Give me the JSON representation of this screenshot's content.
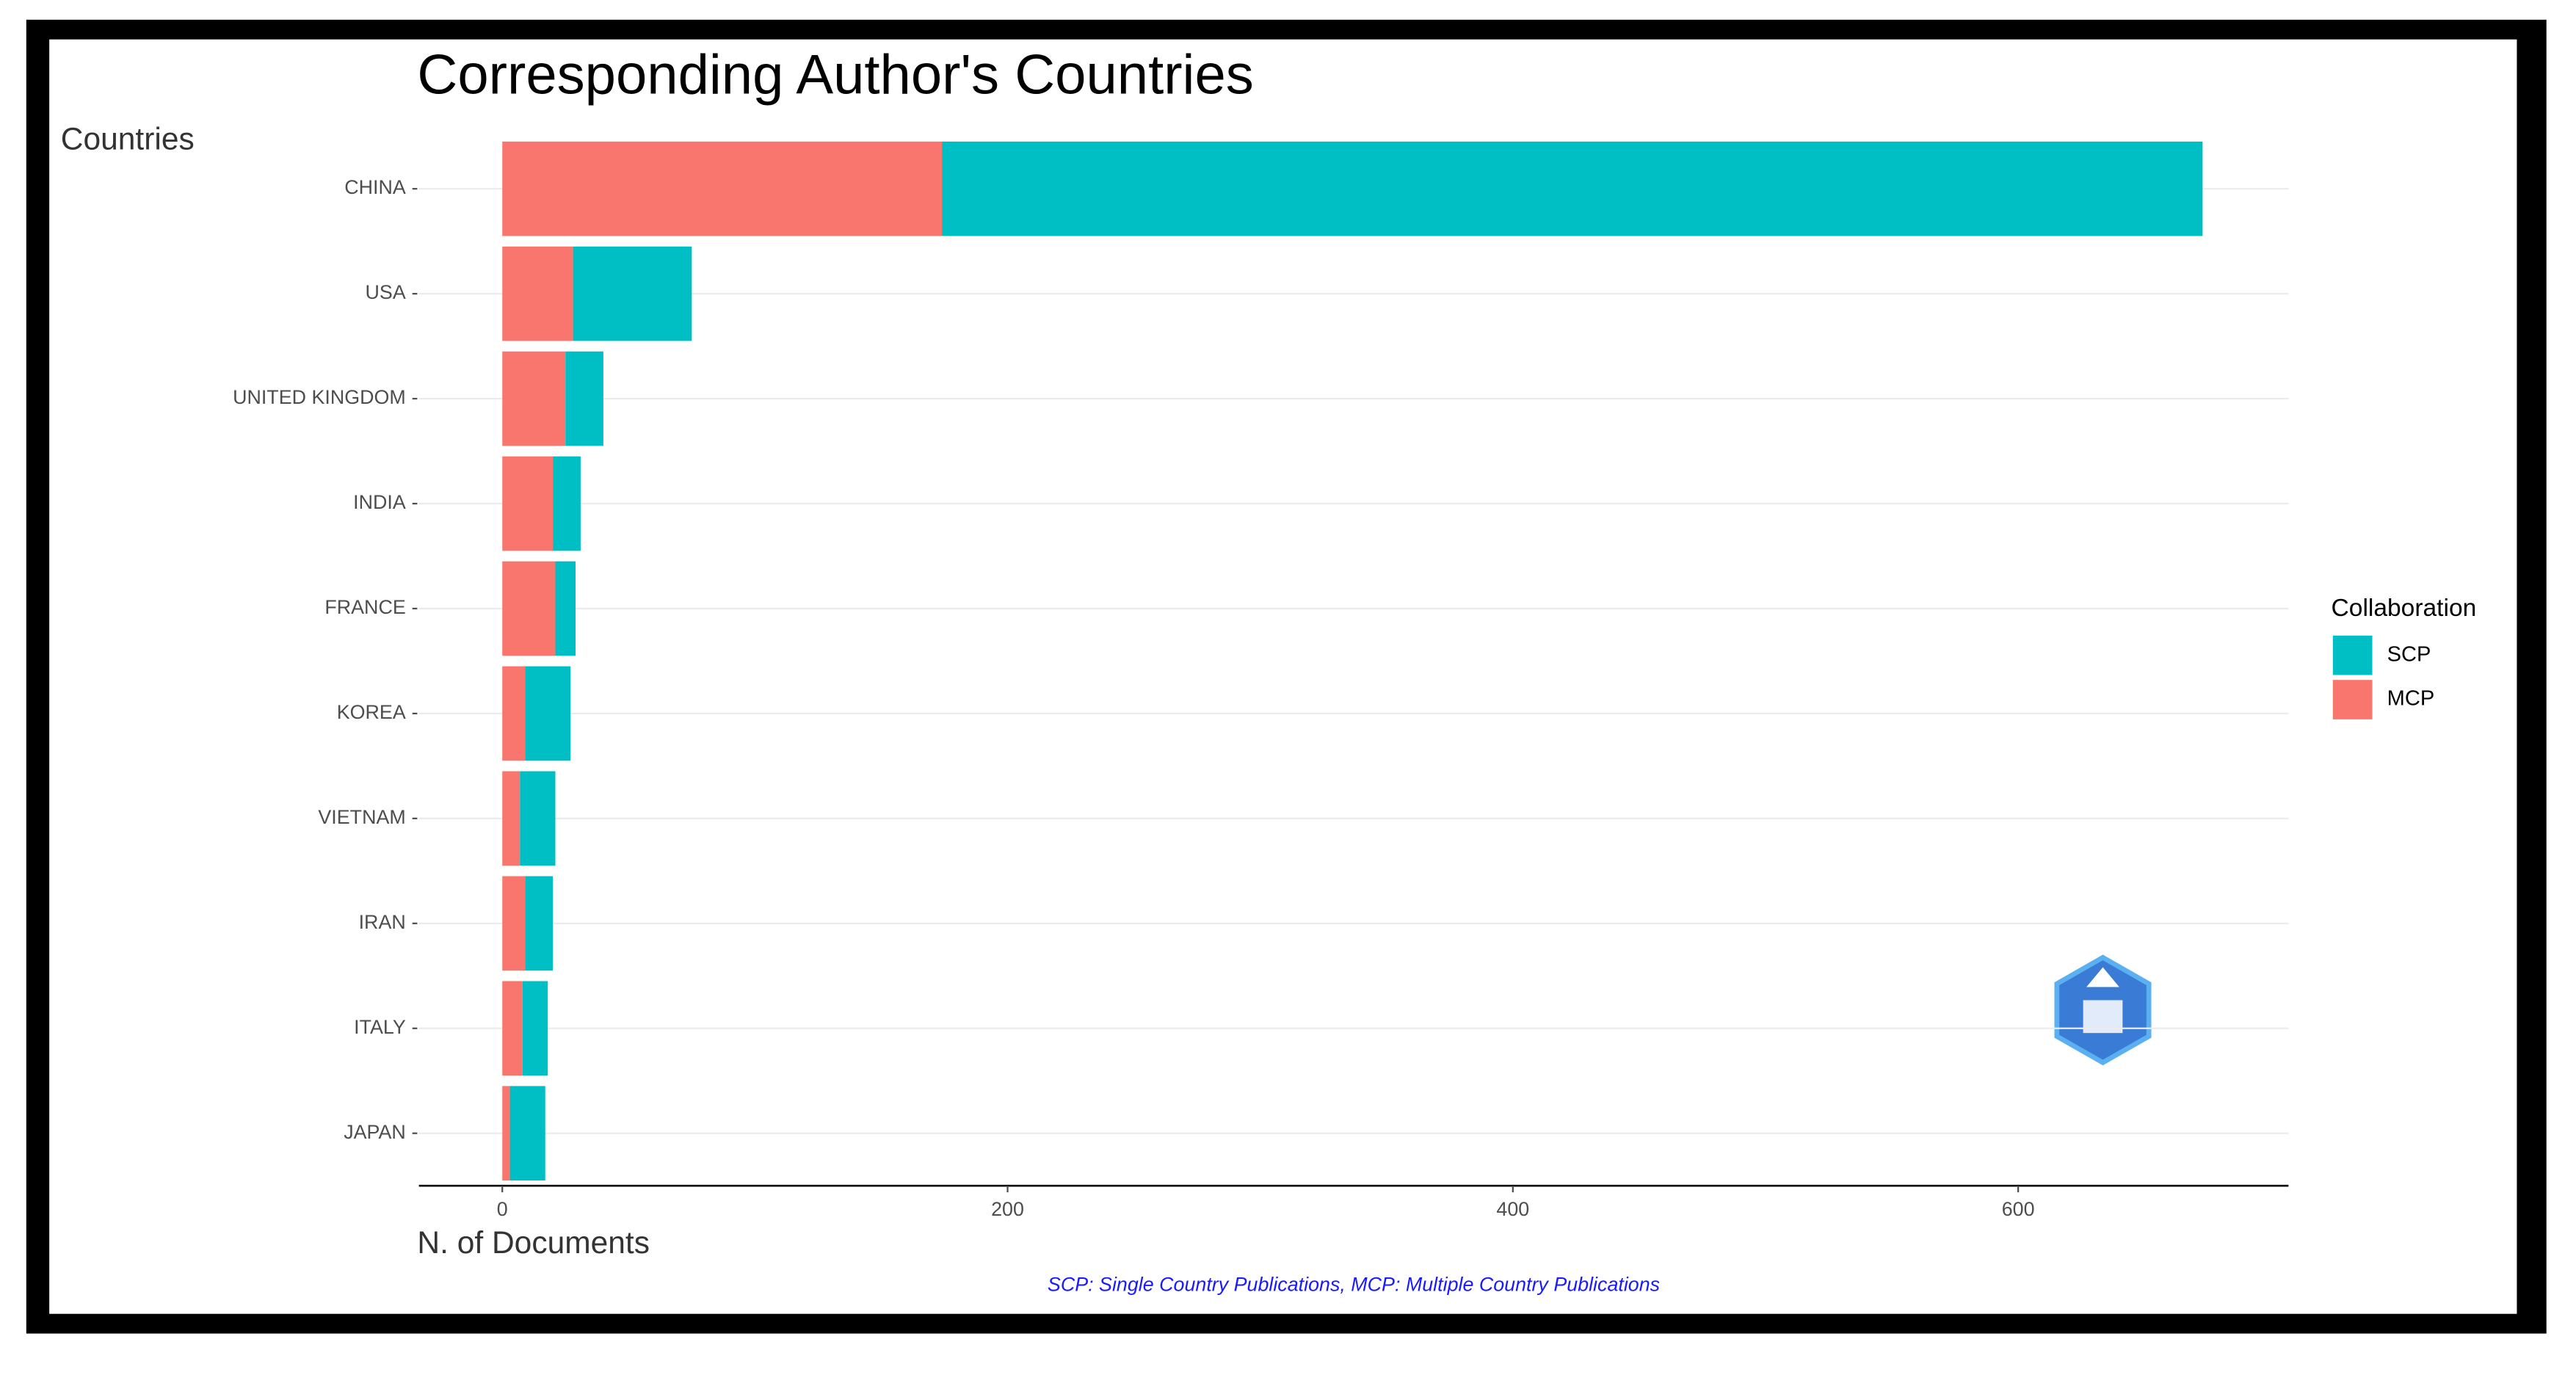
{
  "chart_data": {
    "type": "stacked-barh",
    "title": "Corresponding Author's Countries",
    "ylabel": "Countries",
    "xlabel": "N. of Documents",
    "caption": "SCP: Single Country Publications, MCP: Multiple Country Publications",
    "legend_title": "Collaboration",
    "legend": "right",
    "categories": [
      "CHINA",
      "USA",
      "UNITED KINGDOM",
      "INDIA",
      "FRANCE",
      "KOREA",
      "VIETNAM",
      "IRAN",
      "ITALY",
      "JAPAN"
    ],
    "series": [
      {
        "name": "MCP",
        "color": "#f8766d",
        "values": [
          174,
          28,
          25,
          20,
          21,
          9,
          7,
          9,
          8,
          3
        ]
      },
      {
        "name": "SCP",
        "color": "#00bfc4",
        "values": [
          499,
          47,
          15,
          11,
          8,
          18,
          14,
          11,
          10,
          14
        ]
      }
    ],
    "xlim": [
      -33,
      707
    ],
    "xticks": [
      0,
      200,
      400,
      600
    ],
    "grid": true
  }
}
